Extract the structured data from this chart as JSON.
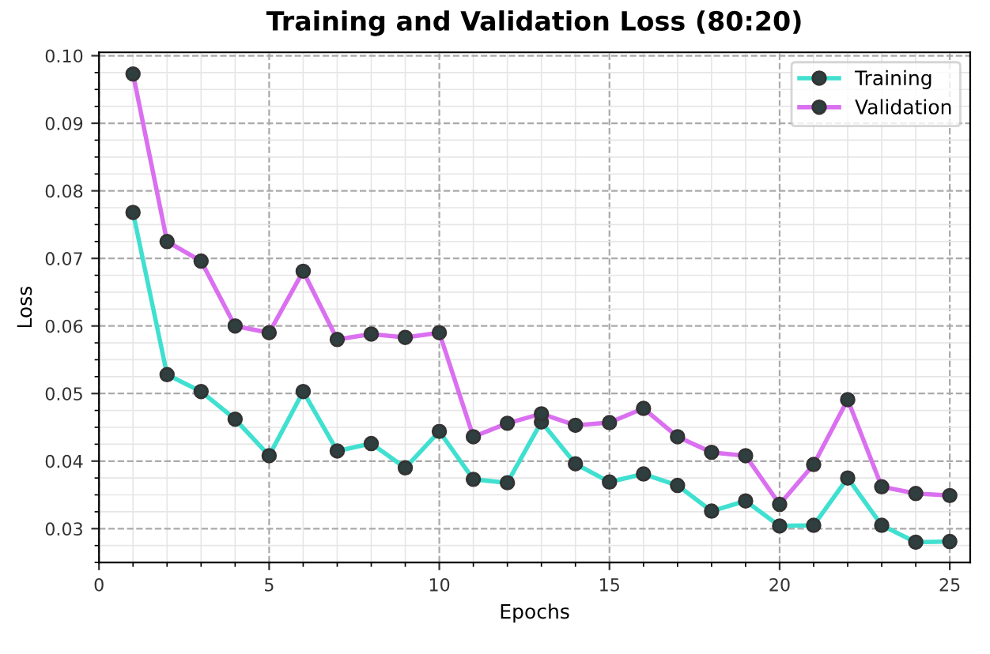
{
  "chart_data": {
    "type": "line",
    "title": "Training and Validation Loss (80:20)",
    "xlabel": "Epochs",
    "ylabel": "Loss",
    "x": [
      1,
      2,
      3,
      4,
      5,
      6,
      7,
      8,
      9,
      10,
      11,
      12,
      13,
      14,
      15,
      16,
      17,
      18,
      19,
      20,
      21,
      22,
      23,
      24,
      25
    ],
    "series": [
      {
        "name": "Training",
        "color": "#40e0d0",
        "values": [
          0.0768,
          0.0528,
          0.0503,
          0.0462,
          0.0408,
          0.0503,
          0.0415,
          0.0426,
          0.039,
          0.0444,
          0.0373,
          0.0368,
          0.0458,
          0.0396,
          0.0369,
          0.0381,
          0.0364,
          0.0326,
          0.0341,
          0.0304,
          0.0305,
          0.0375,
          0.0305,
          0.028,
          0.0281
        ]
      },
      {
        "name": "Validation",
        "color": "#da70f0",
        "values": [
          0.0973,
          0.0725,
          0.0696,
          0.06,
          0.059,
          0.0681,
          0.058,
          0.0588,
          0.0583,
          0.059,
          0.0436,
          0.0456,
          0.047,
          0.0453,
          0.0457,
          0.0478,
          0.0436,
          0.0413,
          0.0408,
          0.0336,
          0.0395,
          0.0491,
          0.0362,
          0.0352,
          0.0349
        ]
      }
    ],
    "xlim": [
      0,
      25.6
    ],
    "xticks": [
      0,
      5,
      10,
      15,
      20,
      25
    ],
    "ylim": [
      0.025,
      0.1005
    ],
    "yticks": [
      {
        "value": 0.03,
        "label": "0.03"
      },
      {
        "value": 0.04,
        "label": "0.04"
      },
      {
        "value": 0.05,
        "label": "0.05"
      },
      {
        "value": 0.06,
        "label": "0.06"
      },
      {
        "value": 0.07,
        "label": "0.07"
      },
      {
        "value": 0.08,
        "label": "0.08"
      },
      {
        "value": 0.09,
        "label": "0.09"
      },
      {
        "value": 0.1,
        "label": "0.10"
      }
    ],
    "grid": true,
    "legend": "top right",
    "marker": "circle",
    "line_style": "solid"
  }
}
